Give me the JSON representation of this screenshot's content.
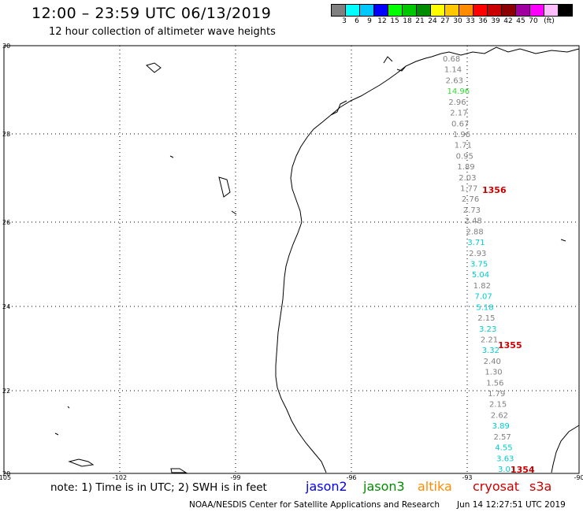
{
  "title": "12:00 – 23:59 UTC 06/13/2019",
  "subtitle": "12 hour collection of altimeter wave heights",
  "color_scale": {
    "unit_label": "(ft)",
    "ticks": [
      "3",
      "6",
      "9",
      "12",
      "15",
      "18",
      "21",
      "24",
      "27",
      "30",
      "33",
      "36",
      "39",
      "42",
      "45",
      "70"
    ],
    "colors": [
      "#808080",
      "#00ffff",
      "#00c8ff",
      "#0000ff",
      "#00ff00",
      "#00c800",
      "#008c00",
      "#ffff00",
      "#ffc800",
      "#ff8c00",
      "#ff0000",
      "#c80000",
      "#8c0000",
      "#a000a0",
      "#ff00ff",
      "#ffbfff",
      "#000000"
    ]
  },
  "axes": {
    "lat_labels": [
      "30",
      "28",
      "26",
      "24",
      "22",
      "20"
    ],
    "lon_labels": [
      "-105",
      "-102",
      "-99",
      "-96",
      "-93",
      "-90"
    ]
  },
  "track": {
    "points": [
      {
        "v": "0.68",
        "c": "#808080"
      },
      {
        "v": "1.14",
        "c": "#808080"
      },
      {
        "v": "2.63",
        "c": "#808080"
      },
      {
        "v": "14.96",
        "c": "#33dd33"
      },
      {
        "v": "2.96",
        "c": "#808080"
      },
      {
        "v": "2.17",
        "c": "#808080"
      },
      {
        "v": "0.67",
        "c": "#808080"
      },
      {
        "v": "1.96",
        "c": "#808080"
      },
      {
        "v": "1.71",
        "c": "#808080"
      },
      {
        "v": "0.95",
        "c": "#808080"
      },
      {
        "v": "1.89",
        "c": "#808080"
      },
      {
        "v": "2.03",
        "c": "#808080"
      },
      {
        "v": "1.77",
        "c": "#808080"
      },
      {
        "v": "2.76",
        "c": "#808080"
      },
      {
        "v": "2.73",
        "c": "#808080"
      },
      {
        "v": "2.48",
        "c": "#808080"
      },
      {
        "v": "2.88",
        "c": "#808080"
      },
      {
        "v": "3.71",
        "c": "#00cccc"
      },
      {
        "v": "2.93",
        "c": "#808080"
      },
      {
        "v": "3.75",
        "c": "#00cccc"
      },
      {
        "v": "5.04",
        "c": "#00cccc"
      },
      {
        "v": "1.82",
        "c": "#808080"
      },
      {
        "v": "7.07",
        "c": "#00cccc"
      },
      {
        "v": "5.18",
        "c": "#00cccc"
      },
      {
        "v": "2.15",
        "c": "#808080"
      },
      {
        "v": "3.23",
        "c": "#00cccc"
      },
      {
        "v": "2.21",
        "c": "#808080"
      },
      {
        "v": "3.32",
        "c": "#00cccc"
      },
      {
        "v": "2.40",
        "c": "#808080"
      },
      {
        "v": "1.30",
        "c": "#808080"
      },
      {
        "v": "1.56",
        "c": "#808080"
      },
      {
        "v": "1.79",
        "c": "#808080"
      },
      {
        "v": "2.15",
        "c": "#808080"
      },
      {
        "v": "2.62",
        "c": "#808080"
      },
      {
        "v": "3.89",
        "c": "#00cccc"
      },
      {
        "v": "2.57",
        "c": "#808080"
      },
      {
        "v": "4.55",
        "c": "#00cccc"
      },
      {
        "v": "3.63",
        "c": "#00cccc"
      },
      {
        "v": "3.03",
        "c": "#00cccc"
      }
    ],
    "time_labels": [
      "1356",
      "1355",
      "1354"
    ]
  },
  "footer": {
    "note": "note: 1) Time is in UTC; 2) SWH is in feet",
    "satellites": [
      {
        "name": "jason2",
        "color": "#0000ff"
      },
      {
        "name": "jason3",
        "color": "#008c00"
      },
      {
        "name": "altika",
        "color": "#ff8c00"
      },
      {
        "name": "cryosat",
        "color": "#cc0000"
      },
      {
        "name": "s3a",
        "color": "#cc0000"
      }
    ],
    "credit": "NOAA/NESDIS Center for Satellite Applications and Research",
    "timestamp": "Jun 14 12:27:51 UTC 2019"
  }
}
